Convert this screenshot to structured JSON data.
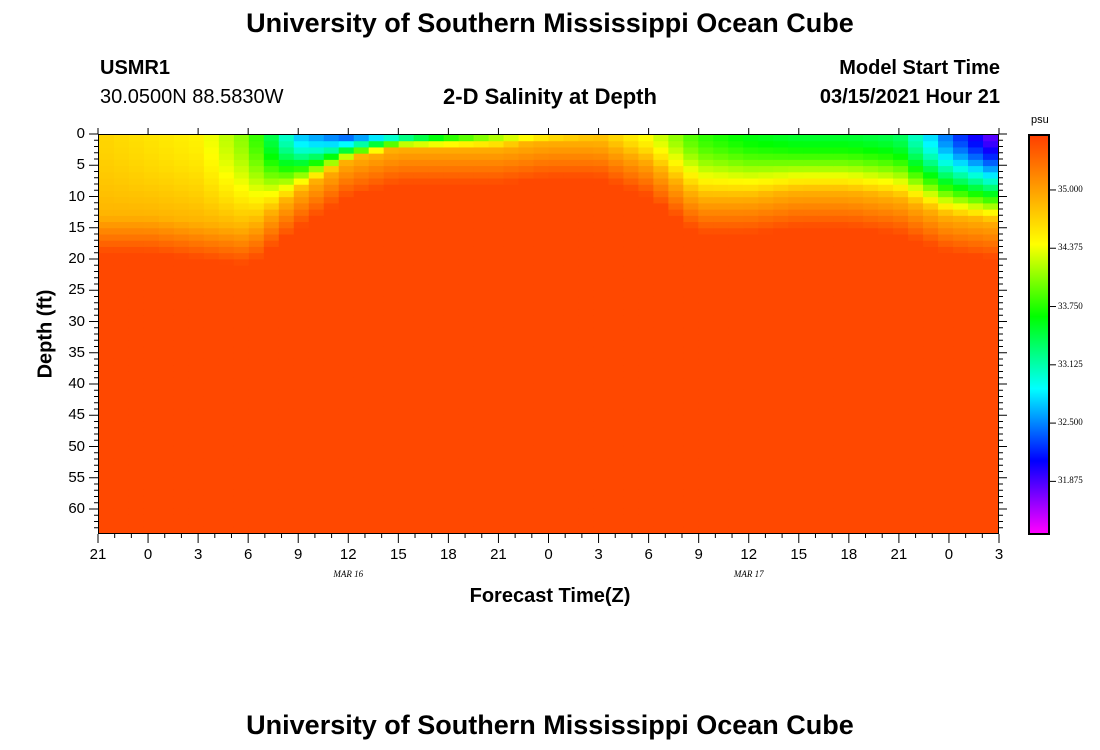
{
  "header": {
    "top_title": "University of Southern Mississippi Ocean Cube",
    "station": "USMR1",
    "coords": "30.0500N 88.5830W",
    "plot_title": "2-D Salinity at Depth",
    "model_start_label": "Model Start Time",
    "model_start_value": "03/15/2021 Hour 21",
    "bottom_title": "University of Southern Mississippi Ocean Cube"
  },
  "chart_data": {
    "type": "heatmap",
    "title": "2-D Salinity at Depth",
    "xlabel": "Forecast Time(Z)",
    "ylabel": "Depth (ft)",
    "x_tick_labels": [
      "21",
      "0",
      "3",
      "6",
      "9",
      "12",
      "15",
      "18",
      "21",
      "0",
      "3",
      "6",
      "9",
      "12",
      "15",
      "18",
      "21",
      "0",
      "3"
    ],
    "x_hours_from_start": [
      0,
      3,
      6,
      9,
      12,
      15,
      18,
      21,
      24,
      27,
      30,
      33,
      36,
      39,
      42,
      45,
      48,
      51,
      54
    ],
    "date_labels": [
      {
        "text": "MAR 16",
        "hour": 15
      },
      {
        "text": "MAR 17",
        "hour": 39
      }
    ],
    "y_tick_labels": [
      "0",
      "5",
      "10",
      "15",
      "20",
      "25",
      "30",
      "35",
      "40",
      "45",
      "50",
      "55",
      "60"
    ],
    "y_values": [
      0,
      5,
      10,
      15,
      20,
      25,
      30,
      35,
      40,
      45,
      50,
      55,
      60
    ],
    "ylim": [
      0,
      64
    ],
    "xlim": [
      0,
      54
    ],
    "y_inverted": true,
    "colorbar": {
      "units": "psu",
      "tick_labels": [
        "35.000",
        "34.375",
        "33.750",
        "33.125",
        "32.500",
        "31.875"
      ],
      "tick_values": [
        35.0,
        34.375,
        33.75,
        33.125,
        32.5,
        31.875
      ],
      "range": [
        31.3,
        35.6
      ],
      "colors": [
        "#ff00ff",
        "#8000ff",
        "#0000ff",
        "#0080ff",
        "#00ffff",
        "#00ff80",
        "#00ff00",
        "#80ff00",
        "#ffff00",
        "#ffc000",
        "#ff8000",
        "#ff4000"
      ]
    },
    "depth_profiles": {
      "depths_ft": [
        0,
        2,
        4,
        6,
        8,
        10,
        12,
        14,
        16,
        18,
        20,
        24,
        30,
        40,
        50,
        64
      ],
      "hours": [
        0,
        3,
        6,
        9,
        12,
        15,
        18,
        21,
        24,
        27,
        30,
        33,
        36,
        39,
        42,
        45,
        48,
        51,
        54
      ],
      "surface": [
        34.7,
        34.6,
        34.5,
        34.0,
        32.7,
        32.3,
        32.9,
        33.6,
        34.1,
        34.5,
        34.8,
        34.4,
        33.8,
        33.6,
        33.5,
        33.5,
        33.4,
        32.4,
        31.7
      ],
      "fresh_layer_depth_ft": [
        13,
        13,
        14,
        15,
        9,
        4,
        2,
        2,
        2,
        1,
        1,
        4,
        10,
        10,
        9,
        9,
        10,
        13,
        14
      ]
    }
  }
}
